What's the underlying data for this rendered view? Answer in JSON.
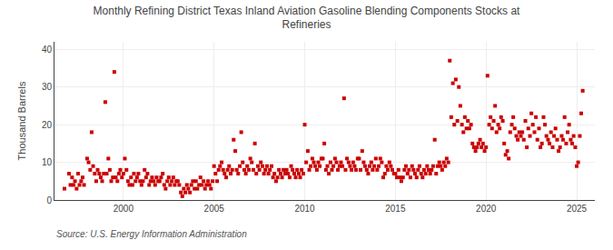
{
  "chart_data": {
    "type": "scatter",
    "title": "Monthly Refining District Texas Inland Aviation Gasoline Blending Components Stocks at\nRefineries",
    "ylabel": "Thousand Barrels",
    "annotations": [
      "Source: U.S. Energy Information Administration"
    ],
    "color": "#cc0000",
    "marker": "square",
    "grid": true,
    "xlim": [
      1996.2,
      2026.0
    ],
    "ylim": [
      0,
      42
    ],
    "xticks": [
      2000,
      2005,
      2010,
      2015,
      2020,
      2025
    ],
    "yticks": [
      0,
      10,
      20,
      30,
      40
    ],
    "x": [
      1996.75,
      1997.0,
      1997.08,
      1997.17,
      1997.25,
      1997.33,
      1997.42,
      1997.5,
      1997.58,
      1997.67,
      1997.75,
      1997.83,
      1998.0,
      1998.08,
      1998.17,
      1998.25,
      1998.33,
      1998.42,
      1998.5,
      1998.58,
      1998.67,
      1998.75,
      1998.83,
      1998.92,
      1999.0,
      1999.08,
      1999.17,
      1999.25,
      1999.33,
      1999.42,
      1999.5,
      1999.58,
      1999.67,
      1999.75,
      1999.83,
      1999.92,
      2000.0,
      2000.08,
      2000.17,
      2000.25,
      2000.33,
      2000.42,
      2000.5,
      2000.58,
      2000.67,
      2000.75,
      2000.83,
      2000.92,
      2001.0,
      2001.08,
      2001.17,
      2001.25,
      2001.33,
      2001.42,
      2001.5,
      2001.58,
      2001.67,
      2001.75,
      2001.83,
      2001.92,
      2002.0,
      2002.08,
      2002.17,
      2002.25,
      2002.33,
      2002.42,
      2002.5,
      2002.58,
      2002.67,
      2002.75,
      2002.83,
      2002.92,
      2003.0,
      2003.08,
      2003.17,
      2003.25,
      2003.33,
      2003.42,
      2003.5,
      2003.58,
      2003.67,
      2003.75,
      2003.83,
      2003.92,
      2004.0,
      2004.08,
      2004.17,
      2004.25,
      2004.33,
      2004.42,
      2004.5,
      2004.58,
      2004.67,
      2004.75,
      2004.83,
      2004.92,
      2005.0,
      2005.08,
      2005.17,
      2005.25,
      2005.33,
      2005.42,
      2005.5,
      2005.58,
      2005.67,
      2005.75,
      2005.83,
      2005.92,
      2006.0,
      2006.08,
      2006.17,
      2006.25,
      2006.33,
      2006.42,
      2006.5,
      2006.58,
      2006.67,
      2006.75,
      2006.83,
      2006.92,
      2007.0,
      2007.08,
      2007.17,
      2007.25,
      2007.33,
      2007.42,
      2007.5,
      2007.58,
      2007.67,
      2007.75,
      2007.83,
      2007.92,
      2008.0,
      2008.08,
      2008.17,
      2008.25,
      2008.33,
      2008.42,
      2008.5,
      2008.58,
      2008.67,
      2008.75,
      2008.83,
      2008.92,
      2009.0,
      2009.08,
      2009.17,
      2009.25,
      2009.33,
      2009.42,
      2009.5,
      2009.58,
      2009.67,
      2009.75,
      2009.83,
      2009.92,
      2010.0,
      2010.08,
      2010.17,
      2010.25,
      2010.33,
      2010.42,
      2010.5,
      2010.58,
      2010.67,
      2010.75,
      2010.83,
      2010.92,
      2011.0,
      2011.08,
      2011.17,
      2011.25,
      2011.33,
      2011.42,
      2011.5,
      2011.58,
      2011.67,
      2011.75,
      2011.83,
      2011.92,
      2012.0,
      2012.08,
      2012.17,
      2012.25,
      2012.33,
      2012.42,
      2012.5,
      2012.58,
      2012.67,
      2012.75,
      2012.83,
      2012.92,
      2013.0,
      2013.08,
      2013.17,
      2013.25,
      2013.33,
      2013.42,
      2013.5,
      2013.58,
      2013.67,
      2013.75,
      2013.83,
      2013.92,
      2014.0,
      2014.08,
      2014.17,
      2014.25,
      2014.33,
      2014.42,
      2014.5,
      2014.58,
      2014.67,
      2014.75,
      2014.83,
      2014.92,
      2015.0,
      2015.08,
      2015.17,
      2015.25,
      2015.33,
      2015.42,
      2015.5,
      2015.58,
      2015.67,
      2015.75,
      2015.83,
      2015.92,
      2016.0,
      2016.08,
      2016.17,
      2016.25,
      2016.33,
      2016.42,
      2016.5,
      2016.58,
      2016.67,
      2016.75,
      2016.83,
      2016.92,
      2017.0,
      2017.08,
      2017.17,
      2017.25,
      2017.33,
      2017.42,
      2017.5,
      2017.58,
      2017.67,
      2017.75,
      2017.83,
      2017.92,
      2018.0,
      2018.08,
      2018.17,
      2018.25,
      2018.33,
      2018.42,
      2018.5,
      2018.58,
      2018.67,
      2018.75,
      2018.83,
      2018.92,
      2019.0,
      2019.08,
      2019.17,
      2019.25,
      2019.33,
      2019.42,
      2019.5,
      2019.58,
      2019.67,
      2019.75,
      2019.83,
      2019.92,
      2020.0,
      2020.08,
      2020.17,
      2020.25,
      2020.33,
      2020.42,
      2020.5,
      2020.58,
      2020.67,
      2020.75,
      2020.83,
      2020.92,
      2021.0,
      2021.08,
      2021.17,
      2021.25,
      2021.33,
      2021.42,
      2021.5,
      2021.58,
      2021.67,
      2021.75,
      2021.83,
      2021.92,
      2022.0,
      2022.08,
      2022.17,
      2022.25,
      2022.33,
      2022.42,
      2022.5,
      2022.58,
      2022.67,
      2022.75,
      2022.83,
      2022.92,
      2023.0,
      2023.08,
      2023.17,
      2023.25,
      2023.33,
      2023.42,
      2023.5,
      2023.58,
      2023.67,
      2023.75,
      2023.83,
      2023.92,
      2024.0,
      2024.08,
      2024.17,
      2024.25,
      2024.33,
      2024.42,
      2024.5,
      2024.58,
      2024.67,
      2024.75,
      2024.83,
      2024.92,
      2025.0,
      2025.08,
      2025.17,
      2025.25,
      2025.33
    ],
    "values": [
      3,
      7,
      4,
      6,
      4,
      5,
      3,
      7,
      4,
      5,
      6,
      4,
      11,
      10,
      8,
      18,
      9,
      7,
      5,
      8,
      7,
      6,
      5,
      7,
      26,
      7,
      11,
      8,
      5,
      6,
      34,
      6,
      5,
      7,
      8,
      6,
      7,
      11,
      8,
      5,
      4,
      6,
      4,
      7,
      5,
      6,
      7,
      5,
      4,
      5,
      8,
      6,
      7,
      4,
      5,
      6,
      5,
      4,
      6,
      5,
      5,
      6,
      7,
      4,
      3,
      5,
      6,
      4,
      5,
      6,
      4,
      5,
      5,
      4,
      2,
      1,
      3,
      2,
      4,
      3,
      2,
      4,
      5,
      3,
      5,
      3,
      4,
      6,
      4,
      5,
      3,
      4,
      5,
      4,
      3,
      5,
      9,
      7,
      5,
      8,
      9,
      10,
      8,
      7,
      6,
      8,
      9,
      7,
      8,
      16,
      13,
      8,
      7,
      9,
      18,
      10,
      8,
      7,
      9,
      8,
      11,
      10,
      8,
      15,
      7,
      9,
      8,
      10,
      9,
      7,
      8,
      9,
      7,
      8,
      9,
      6,
      7,
      5,
      6,
      8,
      7,
      6,
      8,
      7,
      8,
      7,
      6,
      9,
      8,
      7,
      6,
      8,
      7,
      6,
      8,
      7,
      20,
      10,
      13,
      8,
      9,
      11,
      10,
      9,
      8,
      10,
      9,
      11,
      11,
      15,
      8,
      9,
      7,
      10,
      8,
      9,
      11,
      10,
      8,
      9,
      10,
      9,
      27,
      8,
      11,
      10,
      9,
      8,
      10,
      9,
      8,
      11,
      11,
      8,
      13,
      10,
      9,
      8,
      7,
      9,
      10,
      8,
      9,
      11,
      8,
      9,
      11,
      10,
      6,
      7,
      9,
      8,
      10,
      9,
      8,
      7,
      7,
      6,
      8,
      6,
      5,
      6,
      8,
      9,
      7,
      8,
      6,
      9,
      8,
      7,
      6,
      8,
      9,
      7,
      6,
      8,
      7,
      9,
      8,
      7,
      8,
      9,
      16,
      7,
      9,
      10,
      9,
      8,
      10,
      9,
      11,
      10,
      37,
      22,
      31,
      20,
      32,
      21,
      30,
      25,
      20,
      18,
      22,
      19,
      21,
      19,
      20,
      15,
      14,
      13,
      14,
      15,
      16,
      14,
      15,
      13,
      14,
      33,
      20,
      22,
      19,
      21,
      25,
      18,
      20,
      19,
      22,
      21,
      15,
      12,
      13,
      11,
      18,
      20,
      22,
      19,
      17,
      16,
      18,
      17,
      18,
      16,
      21,
      14,
      19,
      17,
      23,
      20,
      18,
      22,
      16,
      19,
      14,
      15,
      22,
      20,
      17,
      16,
      15,
      18,
      14,
      17,
      19,
      16,
      13,
      14,
      17,
      16,
      22,
      15,
      18,
      20,
      16,
      15,
      17,
      14,
      9,
      10,
      17,
      23,
      29
    ]
  }
}
